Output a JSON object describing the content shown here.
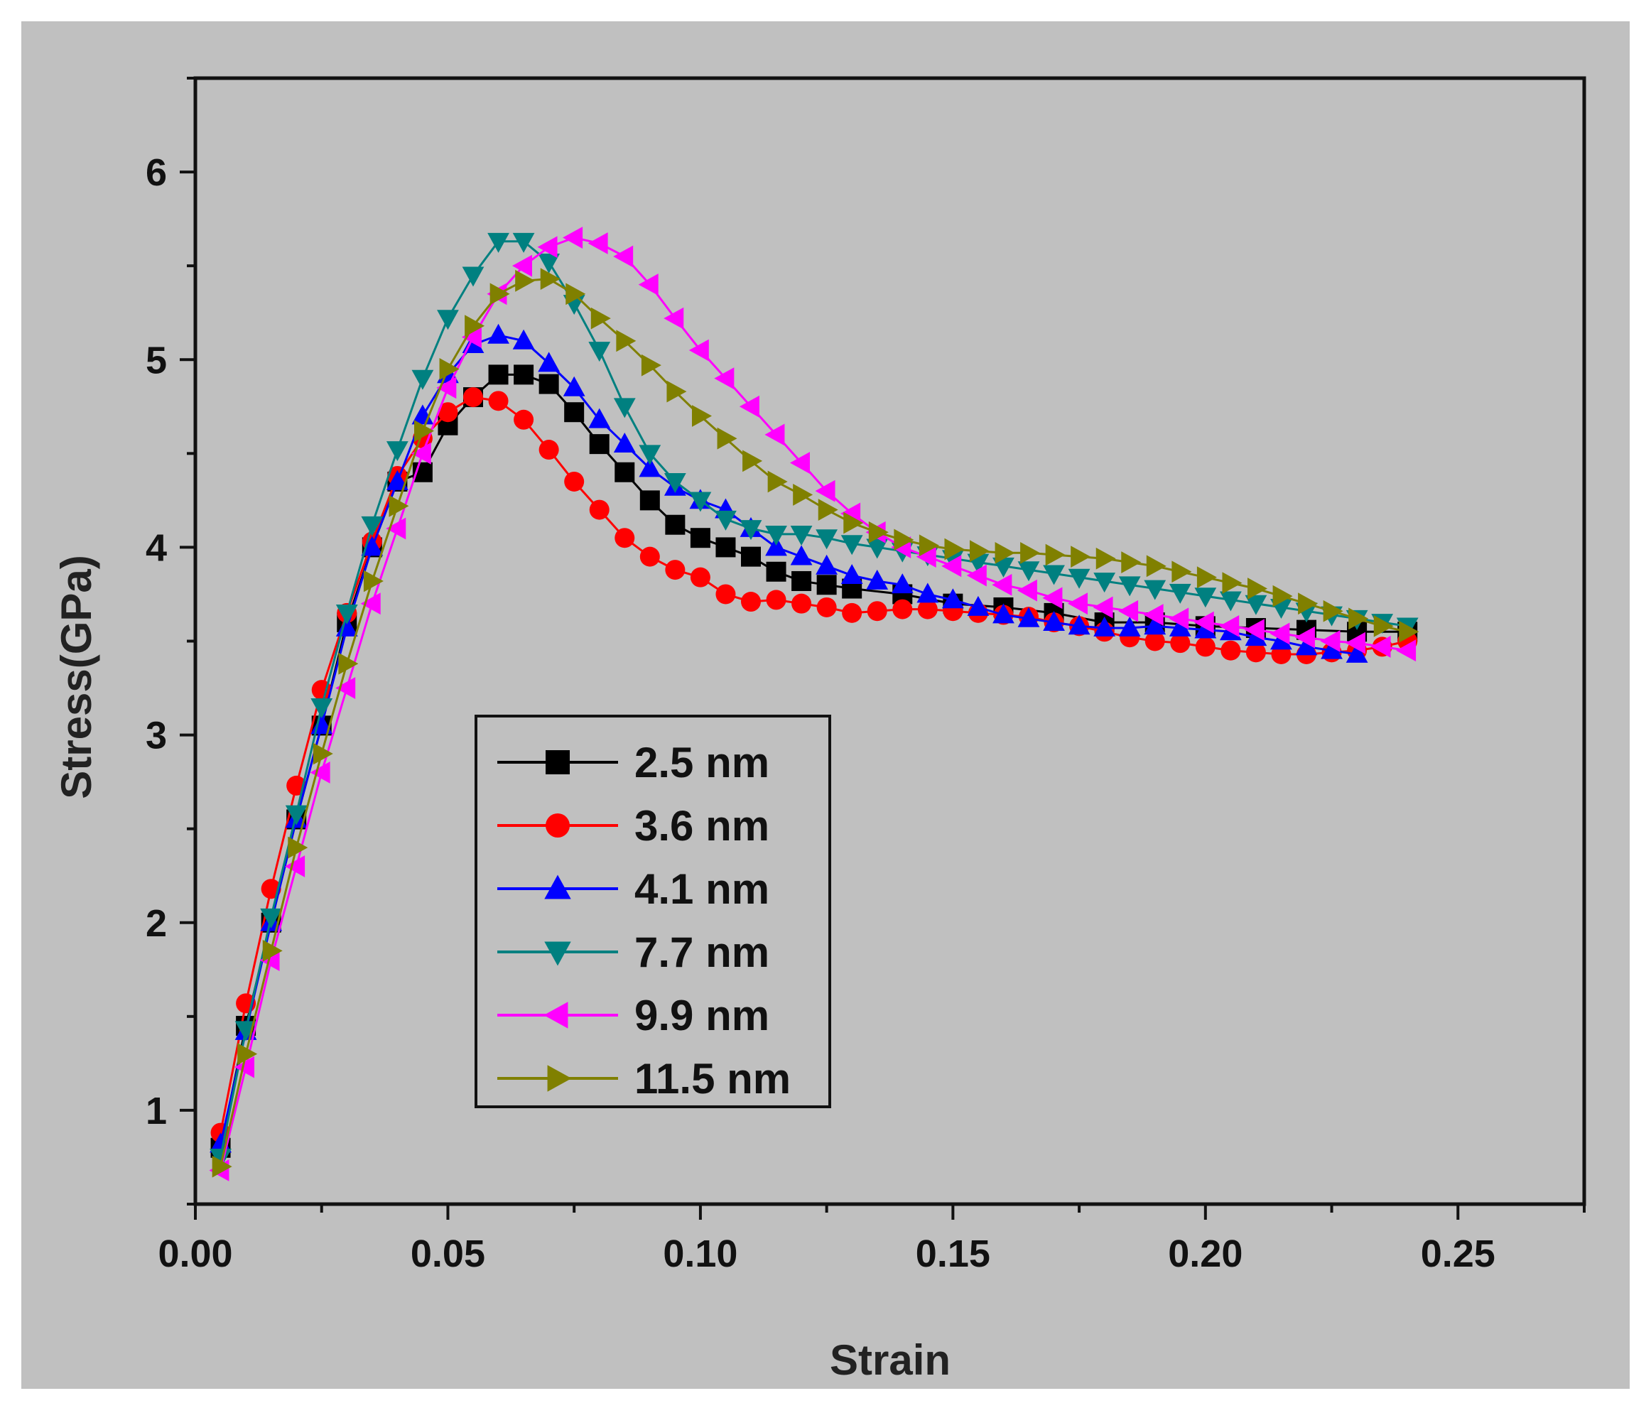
{
  "chart_data": {
    "type": "line",
    "title": "",
    "xlabel": "Strain",
    "ylabel": "Stress(GPa)",
    "xlim": [
      0.0,
      0.275
    ],
    "ylim": [
      0.5,
      6.5
    ],
    "xticks": [
      0.0,
      0.05,
      0.1,
      0.15,
      0.2,
      0.25
    ],
    "xtick_labels": [
      "0.00",
      "0.05",
      "0.10",
      "0.15",
      "0.20",
      "0.25"
    ],
    "yticks": [
      1,
      2,
      3,
      4,
      5,
      6
    ],
    "ytick_labels": [
      "1",
      "2",
      "3",
      "4",
      "5",
      "6"
    ],
    "grid": false,
    "legend_position": "lower-left",
    "colors": {
      "plot_background": "#c0c0c0",
      "frame": "#111111"
    },
    "series": [
      {
        "name": "2.5 nm",
        "marker": "square",
        "color": "#000000",
        "x": [
          0.005,
          0.01,
          0.015,
          0.02,
          0.025,
          0.03,
          0.035,
          0.04,
          0.045,
          0.05,
          0.055,
          0.06,
          0.065,
          0.07,
          0.075,
          0.08,
          0.085,
          0.09,
          0.095,
          0.1,
          0.105,
          0.11,
          0.115,
          0.12,
          0.125,
          0.13,
          0.14,
          0.15,
          0.16,
          0.17,
          0.18,
          0.19,
          0.2,
          0.21,
          0.22,
          0.23,
          0.24
        ],
        "y": [
          0.8,
          1.45,
          2.0,
          2.55,
          3.05,
          3.6,
          4.0,
          4.35,
          4.4,
          4.65,
          4.8,
          4.92,
          4.92,
          4.87,
          4.72,
          4.55,
          4.4,
          4.25,
          4.12,
          4.05,
          4.0,
          3.95,
          3.87,
          3.82,
          3.8,
          3.78,
          3.75,
          3.7,
          3.68,
          3.65,
          3.6,
          3.6,
          3.58,
          3.57,
          3.56,
          3.55,
          3.55
        ]
      },
      {
        "name": "3.6 nm",
        "marker": "circle",
        "color": "#ff0000",
        "x": [
          0.005,
          0.01,
          0.015,
          0.02,
          0.025,
          0.03,
          0.035,
          0.04,
          0.045,
          0.05,
          0.055,
          0.06,
          0.065,
          0.07,
          0.075,
          0.08,
          0.085,
          0.09,
          0.095,
          0.1,
          0.105,
          0.11,
          0.115,
          0.12,
          0.125,
          0.13,
          0.135,
          0.14,
          0.145,
          0.15,
          0.155,
          0.16,
          0.165,
          0.17,
          0.175,
          0.18,
          0.185,
          0.19,
          0.195,
          0.2,
          0.205,
          0.21,
          0.215,
          0.22,
          0.225,
          0.23,
          0.235,
          0.24
        ],
        "y": [
          0.88,
          1.57,
          2.18,
          2.73,
          3.24,
          3.65,
          4.03,
          4.38,
          4.58,
          4.72,
          4.8,
          4.78,
          4.68,
          4.52,
          4.35,
          4.2,
          4.05,
          3.95,
          3.88,
          3.84,
          3.75,
          3.71,
          3.72,
          3.7,
          3.68,
          3.65,
          3.66,
          3.67,
          3.67,
          3.66,
          3.65,
          3.64,
          3.63,
          3.6,
          3.58,
          3.55,
          3.52,
          3.5,
          3.49,
          3.47,
          3.45,
          3.44,
          3.43,
          3.43,
          3.44,
          3.45,
          3.47,
          3.5
        ]
      },
      {
        "name": "4.1 nm",
        "marker": "triangle-up",
        "color": "#0000ff",
        "x": [
          0.005,
          0.01,
          0.015,
          0.02,
          0.025,
          0.03,
          0.035,
          0.04,
          0.045,
          0.05,
          0.055,
          0.06,
          0.065,
          0.07,
          0.075,
          0.08,
          0.085,
          0.09,
          0.095,
          0.1,
          0.105,
          0.11,
          0.115,
          0.12,
          0.125,
          0.13,
          0.135,
          0.14,
          0.145,
          0.15,
          0.155,
          0.16,
          0.165,
          0.17,
          0.175,
          0.18,
          0.185,
          0.19,
          0.195,
          0.2,
          0.205,
          0.21,
          0.215,
          0.22,
          0.225,
          0.23
        ],
        "y": [
          0.82,
          1.42,
          2.0,
          2.55,
          3.05,
          3.57,
          4.0,
          4.35,
          4.7,
          4.92,
          5.08,
          5.13,
          5.1,
          4.98,
          4.85,
          4.68,
          4.55,
          4.42,
          4.32,
          4.25,
          4.2,
          4.1,
          4.0,
          3.95,
          3.9,
          3.85,
          3.82,
          3.8,
          3.75,
          3.72,
          3.68,
          3.64,
          3.62,
          3.6,
          3.58,
          3.57,
          3.57,
          3.58,
          3.57,
          3.56,
          3.55,
          3.52,
          3.5,
          3.47,
          3.45,
          3.43
        ]
      },
      {
        "name": "7.7 nm",
        "marker": "triangle-down",
        "color": "#008080",
        "x": [
          0.005,
          0.01,
          0.015,
          0.02,
          0.025,
          0.03,
          0.035,
          0.04,
          0.045,
          0.05,
          0.055,
          0.06,
          0.065,
          0.07,
          0.075,
          0.08,
          0.085,
          0.09,
          0.095,
          0.1,
          0.105,
          0.11,
          0.115,
          0.12,
          0.125,
          0.13,
          0.135,
          0.14,
          0.145,
          0.15,
          0.155,
          0.16,
          0.165,
          0.17,
          0.175,
          0.18,
          0.185,
          0.19,
          0.195,
          0.2,
          0.205,
          0.21,
          0.215,
          0.22,
          0.225,
          0.23,
          0.235,
          0.24
        ],
        "y": [
          0.75,
          1.43,
          2.03,
          2.58,
          3.15,
          3.65,
          4.12,
          4.52,
          4.9,
          5.22,
          5.45,
          5.63,
          5.63,
          5.52,
          5.3,
          5.05,
          4.75,
          4.5,
          4.35,
          4.25,
          4.15,
          4.1,
          4.07,
          4.07,
          4.05,
          4.02,
          4.0,
          3.98,
          3.96,
          3.94,
          3.92,
          3.9,
          3.88,
          3.86,
          3.84,
          3.82,
          3.8,
          3.78,
          3.76,
          3.74,
          3.72,
          3.7,
          3.68,
          3.66,
          3.64,
          3.62,
          3.6,
          3.58
        ]
      },
      {
        "name": "9.9 nm",
        "marker": "triangle-left",
        "color": "#ff00ff",
        "x": [
          0.005,
          0.01,
          0.015,
          0.02,
          0.025,
          0.03,
          0.035,
          0.04,
          0.045,
          0.05,
          0.055,
          0.06,
          0.065,
          0.07,
          0.075,
          0.08,
          0.085,
          0.09,
          0.095,
          0.1,
          0.105,
          0.11,
          0.115,
          0.12,
          0.125,
          0.13,
          0.135,
          0.14,
          0.145,
          0.15,
          0.155,
          0.16,
          0.165,
          0.17,
          0.175,
          0.18,
          0.185,
          0.19,
          0.195,
          0.2,
          0.205,
          0.21,
          0.215,
          0.22,
          0.225,
          0.23,
          0.235,
          0.24
        ],
        "y": [
          0.68,
          1.23,
          1.8,
          2.3,
          2.8,
          3.25,
          3.7,
          4.1,
          4.5,
          4.85,
          5.12,
          5.35,
          5.5,
          5.6,
          5.65,
          5.62,
          5.55,
          5.4,
          5.22,
          5.05,
          4.9,
          4.75,
          4.6,
          4.45,
          4.3,
          4.18,
          4.08,
          4.0,
          3.95,
          3.9,
          3.85,
          3.8,
          3.77,
          3.73,
          3.7,
          3.68,
          3.66,
          3.64,
          3.62,
          3.6,
          3.58,
          3.56,
          3.54,
          3.52,
          3.5,
          3.49,
          3.47,
          3.45
        ]
      },
      {
        "name": "11.5 nm",
        "marker": "triangle-right",
        "color": "#808000",
        "x": [
          0.005,
          0.01,
          0.015,
          0.02,
          0.025,
          0.03,
          0.035,
          0.04,
          0.045,
          0.05,
          0.055,
          0.06,
          0.065,
          0.07,
          0.075,
          0.08,
          0.085,
          0.09,
          0.095,
          0.1,
          0.105,
          0.11,
          0.115,
          0.12,
          0.125,
          0.13,
          0.135,
          0.14,
          0.145,
          0.15,
          0.155,
          0.16,
          0.165,
          0.17,
          0.175,
          0.18,
          0.185,
          0.19,
          0.195,
          0.2,
          0.205,
          0.21,
          0.215,
          0.22,
          0.225,
          0.23,
          0.235,
          0.24
        ],
        "y": [
          0.7,
          1.3,
          1.85,
          2.4,
          2.9,
          3.38,
          3.82,
          4.22,
          4.62,
          4.95,
          5.18,
          5.35,
          5.42,
          5.43,
          5.35,
          5.22,
          5.1,
          4.97,
          4.83,
          4.7,
          4.58,
          4.46,
          4.35,
          4.28,
          4.2,
          4.13,
          4.08,
          4.04,
          4.01,
          3.99,
          3.98,
          3.97,
          3.97,
          3.96,
          3.95,
          3.94,
          3.92,
          3.9,
          3.87,
          3.84,
          3.81,
          3.78,
          3.74,
          3.7,
          3.66,
          3.62,
          3.58,
          3.55
        ]
      }
    ]
  }
}
